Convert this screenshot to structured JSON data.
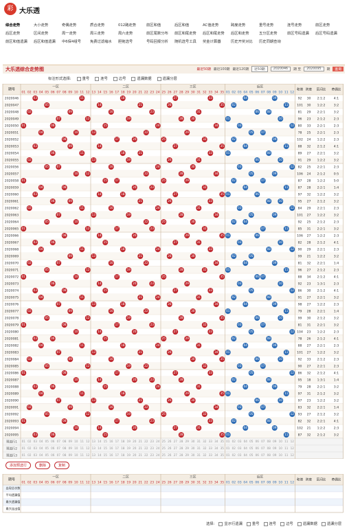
{
  "header": {
    "logo": "彩",
    "title": "大乐透"
  },
  "nav": [
    "综合走势",
    "大小走势",
    "奇偶走势",
    "质合走势",
    "012路走势",
    "前区和值",
    "后区和值",
    "AC值走势",
    "跨度走势",
    "重号走势",
    "连号走势",
    "前区走势",
    "后区走势",
    "区间走势",
    "周一走势",
    "周三走势",
    "周六走势",
    "前区尾数分布",
    "前区和尾走势",
    "后区和尾走势",
    "后区和走势",
    "五分区走势",
    "前区号码遗漏",
    "后区号码遗漏",
    "前区和值遗漏",
    "后区和值遗漏",
    "中6保4组号",
    "免费过滤缩水",
    "胆拖选号",
    "号码回报分析",
    "随机选号工具",
    "奖金计算器",
    "历史开奖对比",
    "历史同期查询"
  ],
  "panel": {
    "title": "大乐透综合走势图",
    "ranges": [
      "最近50期",
      "最近100期",
      "最近120期"
    ],
    "select": "近50期",
    "from": "2020046",
    "from_suffix": "期 至",
    "to": "2020095",
    "to_suffix": "期",
    "query": "查询"
  },
  "options": {
    "label": "标注形式选择:",
    "items": [
      "重号",
      "连号",
      "边号",
      "遗漏数据",
      "遗漏分层"
    ]
  },
  "table": {
    "issue_head": "期号",
    "zones": [
      "一区",
      "二区",
      "三区",
      "后区"
    ],
    "red_cols": [
      "01",
      "02",
      "03",
      "04",
      "05",
      "06",
      "07",
      "08",
      "09",
      "10",
      "11",
      "12",
      "13",
      "14",
      "15",
      "16",
      "17",
      "18",
      "19",
      "20",
      "21",
      "22",
      "23",
      "24",
      "25",
      "26",
      "27",
      "28",
      "29",
      "30",
      "31",
      "32",
      "33",
      "34",
      "35"
    ],
    "blue_cols": [
      "01",
      "02",
      "03",
      "04",
      "05",
      "06",
      "07",
      "08",
      "09",
      "10",
      "11",
      "12"
    ],
    "stat_heads": [
      "和值",
      "跨度",
      "区间比",
      "奇偶比"
    ],
    "rows": [
      [
        "2020046",
        [
          "03",
          "11",
          "18",
          "27",
          "33"
        ],
        [
          "04",
          "09"
        ],
        "92",
        "30",
        "2:1:2",
        "4:1"
      ],
      [
        "2020047",
        [
          "05",
          "14",
          "21",
          "26",
          "35"
        ],
        [
          "02",
          "11"
        ],
        "101",
        "30",
        "1:2:2",
        "3:2"
      ],
      [
        "2020048",
        [
          "02",
          "09",
          "16",
          "23",
          "31"
        ],
        [
          "06",
          "08"
        ],
        "81",
        "29",
        "2:2:1",
        "3:2"
      ],
      [
        "2020049",
        [
          "07",
          "12",
          "19",
          "28",
          "30"
        ],
        [
          "01",
          "10"
        ],
        "96",
        "23",
        "2:1:2",
        "2:3"
      ],
      [
        "2020050",
        [
          "01",
          "06",
          "15",
          "24",
          "34"
        ],
        [
          "03",
          "12"
        ],
        "80",
        "33",
        "2:2:1",
        "2:3"
      ],
      [
        "2020051",
        [
          "04",
          "10",
          "13",
          "22",
          "29"
        ],
        [
          "05",
          "07"
        ],
        "78",
        "25",
        "2:2:1",
        "2:3"
      ],
      [
        "2020052",
        [
          "08",
          "17",
          "20",
          "25",
          "32"
        ],
        [
          "02",
          "09"
        ],
        "102",
        "24",
        "1:2:2",
        "2:3"
      ],
      [
        "2020053",
        [
          "03",
          "09",
          "14",
          "27",
          "35"
        ],
        [
          "04",
          "11"
        ],
        "88",
        "32",
        "2:1:2",
        "4:1"
      ],
      [
        "2020054",
        [
          "06",
          "11",
          "18",
          "21",
          "33"
        ],
        [
          "01",
          "08"
        ],
        "89",
        "27",
        "2:2:1",
        "3:2"
      ],
      [
        "2020055",
        [
          "02",
          "13",
          "19",
          "26",
          "31"
        ],
        [
          "06",
          "10"
        ],
        "91",
        "29",
        "1:2:2",
        "3:2"
      ],
      [
        "2020056",
        [
          "05",
          "07",
          "16",
          "24",
          "30"
        ],
        [
          "03",
          "12"
        ],
        "82",
        "25",
        "2:2:1",
        "2:3"
      ],
      [
        "2020057",
        [
          "10",
          "12",
          "22",
          "28",
          "34"
        ],
        [
          "05",
          "09"
        ],
        "106",
        "24",
        "2:1:2",
        "0:5"
      ],
      [
        "2020058",
        [
          "01",
          "15",
          "17",
          "25",
          "29"
        ],
        [
          "02",
          "07"
        ],
        "87",
        "28",
        "1:2:2",
        "5:0"
      ],
      [
        "2020059",
        [
          "04",
          "08",
          "20",
          "23",
          "32"
        ],
        [
          "04",
          "11"
        ],
        "87",
        "28",
        "2:2:1",
        "1:4"
      ],
      [
        "2020060",
        [
          "03",
          "14",
          "18",
          "27",
          "35"
        ],
        [
          "01",
          "06"
        ],
        "97",
        "32",
        "1:2:2",
        "3:2"
      ],
      [
        "2020061",
        [
          "06",
          "09",
          "21",
          "26",
          "33"
        ],
        [
          "08",
          "10"
        ],
        "95",
        "27",
        "2:1:2",
        "3:2"
      ],
      [
        "2020062",
        [
          "02",
          "11",
          "16",
          "24",
          "31"
        ],
        [
          "03",
          "12"
        ],
        "84",
        "29",
        "2:2:1",
        "2:3"
      ],
      [
        "2020063",
        [
          "07",
          "13",
          "19",
          "28",
          "34"
        ],
        [
          "05",
          "09"
        ],
        "101",
        "27",
        "1:2:2",
        "3:2"
      ],
      [
        "2020064",
        [
          "05",
          "10",
          "22",
          "25",
          "30"
        ],
        [
          "02",
          "04"
        ],
        "92",
        "25",
        "2:1:2",
        "2:3"
      ],
      [
        "2020065",
        [
          "01",
          "12",
          "17",
          "23",
          "32"
        ],
        [
          "07",
          "11"
        ],
        "85",
        "31",
        "2:2:1",
        "3:2"
      ],
      [
        "2020066",
        [
          "08",
          "14",
          "20",
          "29",
          "35"
        ],
        [
          "01",
          "06"
        ],
        "106",
        "27",
        "1:2:2",
        "2:3"
      ],
      [
        "2020067",
        [
          "03",
          "06",
          "15",
          "27",
          "31"
        ],
        [
          "03",
          "10"
        ],
        "82",
        "28",
        "2:1:2",
        "4:1"
      ],
      [
        "2020068",
        [
          "04",
          "11",
          "18",
          "24",
          "33"
        ],
        [
          "08",
          "12"
        ],
        "90",
        "29",
        "2:2:1",
        "2:3"
      ],
      [
        "2020069",
        [
          "09",
          "13",
          "21",
          "26",
          "30"
        ],
        [
          "02",
          "05"
        ],
        "99",
        "21",
        "1:2:2",
        "3:2"
      ],
      [
        "2020070",
        [
          "02",
          "07",
          "16",
          "22",
          "34"
        ],
        [
          "04",
          "09"
        ],
        "81",
        "32",
        "2:2:1",
        "1:4"
      ],
      [
        "2020071",
        [
          "05",
          "12",
          "19",
          "28",
          "32"
        ],
        [
          "01",
          "11"
        ],
        "96",
        "27",
        "2:1:2",
        "2:3"
      ],
      [
        "2020072",
        [
          "01",
          "10",
          "17",
          "25",
          "35"
        ],
        [
          "06",
          "07"
        ],
        "88",
        "34",
        "2:1:2",
        "4:1"
      ],
      [
        "2020073",
        [
          "06",
          "14",
          "20",
          "23",
          "29"
        ],
        [
          "03",
          "10"
        ],
        "92",
        "23",
        "1:3:1",
        "2:3"
      ],
      [
        "2020074",
        [
          "03",
          "08",
          "15",
          "27",
          "33"
        ],
        [
          "05",
          "12"
        ],
        "86",
        "30",
        "2:1:2",
        "4:1"
      ],
      [
        "2020075",
        [
          "04",
          "11",
          "21",
          "24",
          "31"
        ],
        [
          "02",
          "08"
        ],
        "91",
        "27",
        "2:2:1",
        "3:2"
      ],
      [
        "2020076",
        [
          "07",
          "13",
          "18",
          "26",
          "34"
        ],
        [
          "04",
          "09"
        ],
        "98",
        "27",
        "1:2:2",
        "2:3"
      ],
      [
        "2020077",
        [
          "02",
          "09",
          "16",
          "22",
          "30"
        ],
        [
          "01",
          "11"
        ],
        "79",
        "28",
        "2:2:1",
        "1:4"
      ],
      [
        "2020078",
        [
          "05",
          "12",
          "19",
          "28",
          "35"
        ],
        [
          "06",
          "10"
        ],
        "99",
        "30",
        "2:1:2",
        "3:2"
      ],
      [
        "2020079",
        [
          "01",
          "08",
          "17",
          "23",
          "32"
        ],
        [
          "03",
          "07"
        ],
        "81",
        "31",
        "2:2:1",
        "3:2"
      ],
      [
        "2020080",
        [
          "10",
          "14",
          "20",
          "27",
          "33"
        ],
        [
          "05",
          "12"
        ],
        "104",
        "23",
        "1:2:2",
        "2:3"
      ],
      [
        "2020081",
        [
          "03",
          "06",
          "15",
          "25",
          "29"
        ],
        [
          "02",
          "08"
        ],
        "78",
        "26",
        "2:1:2",
        "4:1"
      ],
      [
        "2020082",
        [
          "04",
          "11",
          "18",
          "24",
          "31"
        ],
        [
          "04",
          "09"
        ],
        "88",
        "27",
        "2:2:1",
        "2:3"
      ],
      [
        "2020083",
        [
          "07",
          "13",
          "21",
          "26",
          "34"
        ],
        [
          "01",
          "11"
        ],
        "101",
        "27",
        "1:2:2",
        "3:2"
      ],
      [
        "2020084",
        [
          "02",
          "09",
          "16",
          "30",
          "35"
        ],
        [
          "06",
          "10"
        ],
        "92",
        "33",
        "2:1:2",
        "2:3"
      ],
      [
        "2020085",
        [
          "05",
          "12",
          "19",
          "22",
          "32"
        ],
        [
          "03",
          "07"
        ],
        "90",
        "27",
        "2:2:1",
        "2:3"
      ],
      [
        "2020086",
        [
          "01",
          "08",
          "17",
          "27",
          "33"
        ],
        [
          "05",
          "12"
        ],
        "86",
        "32",
        "2:1:2",
        "4:1"
      ],
      [
        "2020087",
        [
          "10",
          "14",
          "20",
          "23",
          "28"
        ],
        [
          "02",
          "08"
        ],
        "95",
        "18",
        "1:3:1",
        "1:4"
      ],
      [
        "2020088",
        [
          "03",
          "06",
          "15",
          "24",
          "31"
        ],
        [
          "04",
          "09"
        ],
        "79",
        "28",
        "2:2:1",
        "3:2"
      ],
      [
        "2020089",
        [
          "04",
          "11",
          "18",
          "29",
          "35"
        ],
        [
          "01",
          "11"
        ],
        "97",
        "31",
        "2:1:2",
        "3:2"
      ],
      [
        "2020090",
        [
          "07",
          "13",
          "21",
          "26",
          "30"
        ],
        [
          "06",
          "10"
        ],
        "97",
        "23",
        "1:2:2",
        "3:2"
      ],
      [
        "2020091",
        [
          "02",
          "09",
          "16",
          "22",
          "34"
        ],
        [
          "03",
          "07"
        ],
        "83",
        "32",
        "2:2:1",
        "1:4"
      ],
      [
        "2020092",
        [
          "05",
          "12",
          "19",
          "25",
          "32"
        ],
        [
          "05",
          "12"
        ],
        "93",
        "27",
        "2:1:2",
        "3:2"
      ],
      [
        "2020093",
        [
          "01",
          "08",
          "17",
          "23",
          "33"
        ],
        [
          "02",
          "08"
        ],
        "82",
        "32",
        "2:2:1",
        "4:1"
      ],
      [
        "2020094",
        [
          "10",
          "14",
          "20",
          "27",
          "31"
        ],
        [
          "04",
          "09"
        ],
        "102",
        "21",
        "1:2:2",
        "2:3"
      ],
      [
        "2020095",
        [
          "03",
          "06",
          "15",
          "28",
          "35"
        ],
        [
          "01",
          "11"
        ],
        "87",
        "32",
        "2:1:2",
        "3:2"
      ]
    ]
  },
  "preselect": [
    "预选行1",
    "预选行2",
    "预选行3"
  ],
  "buttons": [
    "添加预选行",
    "删除",
    "复制"
  ],
  "stats": {
    "labels": [
      "出现总次数",
      "平均遗漏值",
      "最大遗漏值",
      "最大连出值"
    ]
  },
  "footer": {
    "label": "选择:",
    "items": [
      "显示行遗漏",
      "重号",
      "连号",
      "边号",
      "遗漏数据",
      "遗漏分层"
    ]
  }
}
